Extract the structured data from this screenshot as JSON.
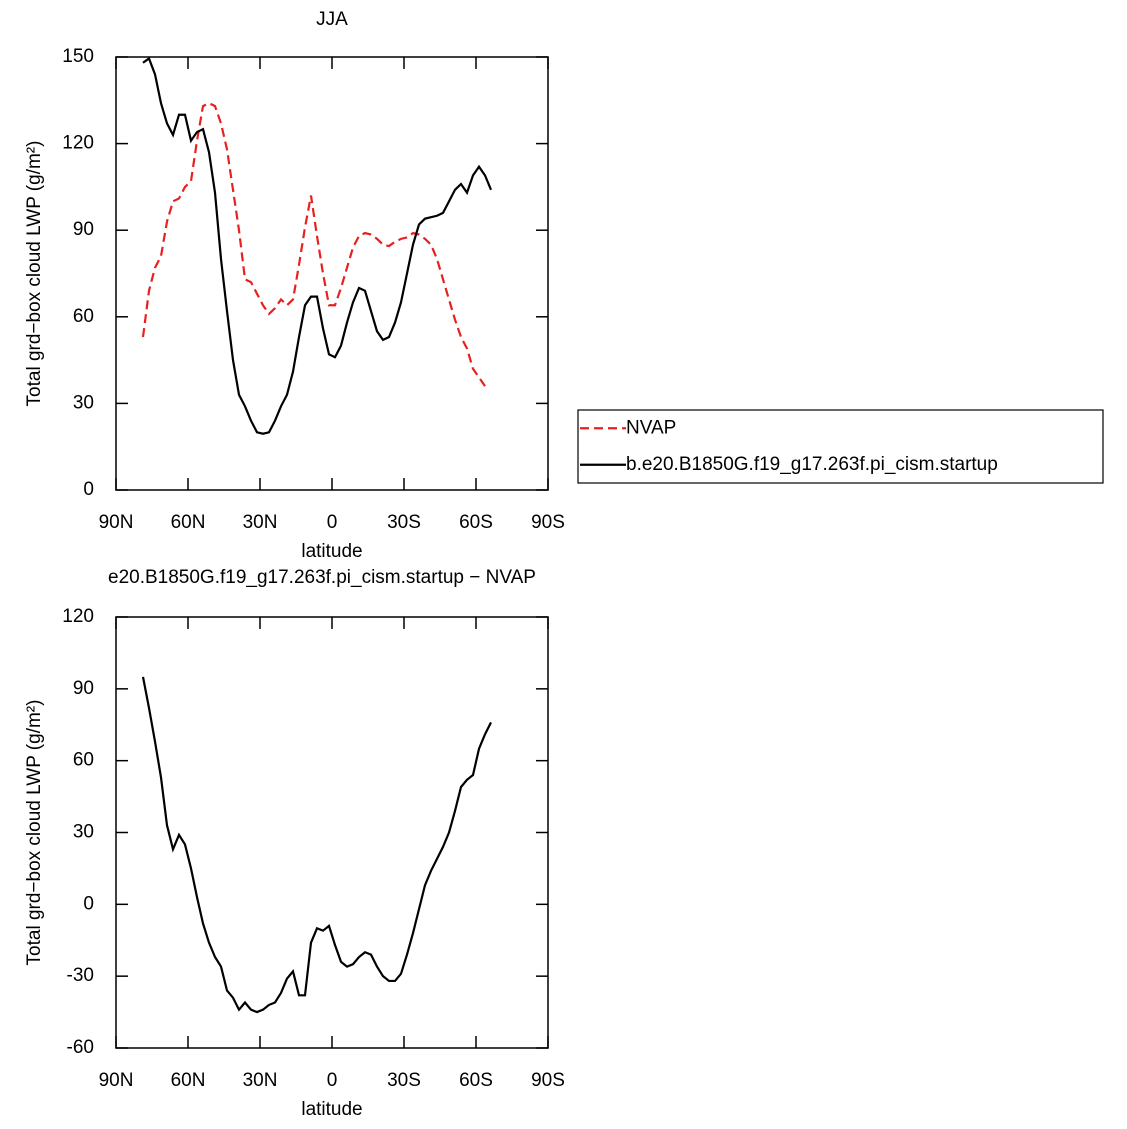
{
  "chart_data": [
    {
      "type": "line",
      "title": "JJA",
      "xlabel": "latitude",
      "ylabel": "Total grd−box cloud LWP (g/m²)",
      "x": [
        78.75,
        76.25,
        73.75,
        71.25,
        68.75,
        66.25,
        63.75,
        61.25,
        58.75,
        56.25,
        53.75,
        51.25,
        48.75,
        46.25,
        43.75,
        41.25,
        38.75,
        36.25,
        33.75,
        31.25,
        28.75,
        26.25,
        23.75,
        21.25,
        18.75,
        16.25,
        13.75,
        11.25,
        8.75,
        6.25,
        3.75,
        1.25,
        -1.25,
        -3.75,
        -6.25,
        -8.75,
        -11.25,
        -13.75,
        -16.25,
        -18.75,
        -21.25,
        -23.75,
        -26.25,
        -28.75,
        -31.25,
        -33.75,
        -36.25,
        -38.75,
        -41.25,
        -43.75,
        -46.25,
        -48.75,
        -51.25,
        -53.75,
        -56.25,
        -58.75,
        -61.25,
        -63.75,
        -66.25,
        -68.75
      ],
      "series": [
        {
          "name": "NVAP",
          "color": "#e8201f",
          "linestyle": "dashed",
          "values": [
            53,
            69,
            77,
            81,
            93,
            100,
            101,
            105,
            107,
            121,
            133,
            134,
            133,
            127,
            118,
            104,
            90,
            73,
            72,
            68,
            64,
            61,
            63,
            66,
            64,
            66,
            78,
            91,
            102,
            88,
            75,
            64,
            64,
            70,
            77,
            84,
            88,
            89,
            88.5,
            87,
            85,
            84.5,
            86,
            87,
            87.5,
            89,
            88.5,
            87,
            85,
            80,
            73,
            66,
            59,
            53,
            49,
            42,
            39,
            36,
            null,
            null
          ]
        },
        {
          "name": "b.e20.B1850G.f19_g17.263f.pi_cism.startup",
          "color": "#000000",
          "linestyle": "solid",
          "values": [
            148,
            149.5,
            144,
            134,
            127,
            123,
            130,
            130,
            121,
            124,
            125,
            117,
            103,
            80,
            62,
            45,
            33,
            29,
            24,
            20,
            19.5,
            20,
            24,
            29,
            33,
            41,
            53,
            64,
            67,
            67,
            56,
            47,
            46,
            50,
            58,
            65,
            70,
            69,
            62,
            55,
            52,
            53,
            58,
            65,
            75,
            85,
            92,
            94,
            94.5,
            95,
            96,
            100,
            104,
            106,
            103,
            109,
            112,
            109,
            104,
            null
          ]
        }
      ],
      "xlim": [
        90,
        -90
      ],
      "xticks": [
        {
          "value": 90,
          "label": "90N"
        },
        {
          "value": 60,
          "label": "60N"
        },
        {
          "value": 30,
          "label": "30N"
        },
        0,
        {
          "value": -30,
          "label": "30S"
        },
        {
          "value": -60,
          "label": "60S"
        },
        {
          "value": -90,
          "label": "90S"
        }
      ],
      "ylim": [
        0,
        150
      ],
      "yticks": [
        0,
        30,
        60,
        90,
        120,
        150
      ],
      "legend": "right"
    },
    {
      "type": "line",
      "title": "e20.B1850G.f19_g17.263f.pi_cism.startup  −  NVAP",
      "xlabel": "latitude",
      "ylabel": "Total grd−box cloud LWP (g/m²)",
      "x": [
        78.75,
        76.25,
        73.75,
        71.25,
        68.75,
        66.25,
        63.75,
        61.25,
        58.75,
        56.25,
        53.75,
        51.25,
        48.75,
        46.25,
        43.75,
        41.25,
        38.75,
        36.25,
        33.75,
        31.25,
        28.75,
        26.25,
        23.75,
        21.25,
        18.75,
        16.25,
        13.75,
        11.25,
        8.75,
        6.25,
        3.75,
        1.25,
        -1.25,
        -3.75,
        -6.25,
        -8.75,
        -11.25,
        -13.75,
        -16.25,
        -18.75,
        -21.25,
        -23.75,
        -26.25,
        -28.75,
        -31.25,
        -33.75,
        -36.25,
        -38.75,
        -41.25,
        -43.75,
        -46.25,
        -48.75,
        -51.25,
        -53.75,
        -56.25,
        -58.75,
        -61.25,
        -63.75,
        -66.25,
        -68.75
      ],
      "series": [
        {
          "color": "#000000",
          "linestyle": "solid",
          "values": [
            95,
            82,
            68,
            53,
            33,
            23,
            29,
            25,
            15,
            3,
            -8,
            -16,
            -22,
            -26,
            -36,
            -39,
            -44,
            -41,
            -44,
            -45,
            -44,
            -42,
            -41,
            -37,
            -31,
            -28,
            -38,
            -38,
            -16,
            -10,
            -11,
            -9,
            -17,
            -24,
            -26,
            -25,
            -22,
            -20,
            -21,
            -26,
            -30,
            -32,
            -32,
            -29,
            -21,
            -12,
            -2,
            8,
            14,
            19,
            24,
            30,
            39,
            49,
            52,
            54,
            65,
            71,
            76,
            null
          ]
        }
      ],
      "xlim": [
        90,
        -90
      ],
      "xticks": [
        {
          "value": 90,
          "label": "90N"
        },
        {
          "value": 60,
          "label": "60N"
        },
        {
          "value": 30,
          "label": "30N"
        },
        0,
        {
          "value": -30,
          "label": "30S"
        },
        {
          "value": -60,
          "label": "60S"
        },
        {
          "value": -90,
          "label": "90S"
        }
      ],
      "ylim": [
        -60,
        120
      ],
      "yticks": [
        -60,
        -30,
        0,
        30,
        60,
        90,
        120
      ]
    }
  ]
}
